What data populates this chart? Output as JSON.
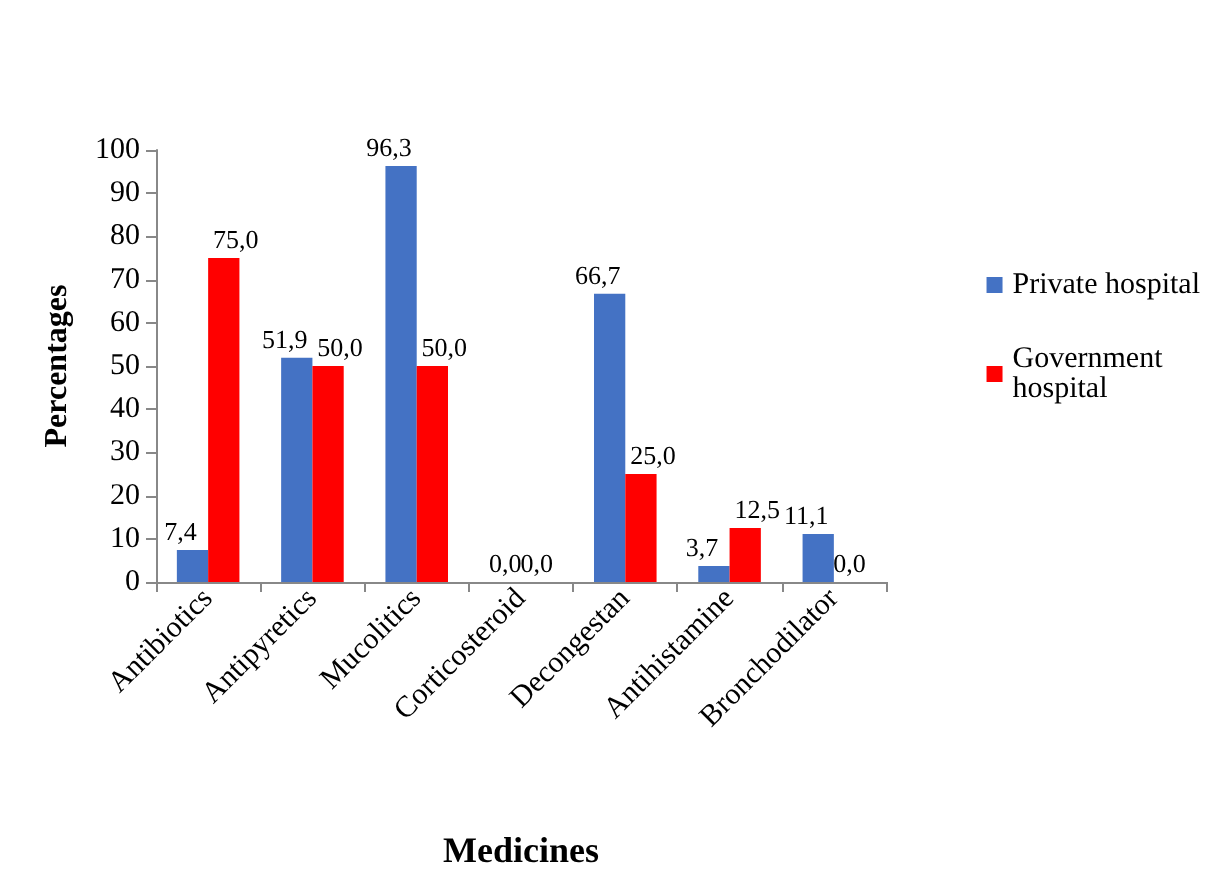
{
  "chart_data": {
    "type": "bar",
    "xlabel": "Medicines",
    "ylabel": "Percentages",
    "categories": [
      "Antibiotics",
      "Antipyretics",
      "Mucolitics",
      "Corticosteroid",
      "Decongestan",
      "Antihistamine",
      "Bronchodilator"
    ],
    "series": [
      {
        "name": "Private hospital",
        "color": "#4472c4",
        "values": [
          7.4,
          51.9,
          96.3,
          0.0,
          66.7,
          3.7,
          11.1
        ],
        "value_labels": [
          "7,4",
          "51,9",
          "96,3",
          "0,0",
          "66,7",
          "3,7",
          "11,1"
        ]
      },
      {
        "name": "Government hospital",
        "color": "#ff0000",
        "values": [
          75.0,
          50.0,
          50.0,
          0.0,
          25.0,
          12.5,
          0.0
        ],
        "value_labels": [
          "75,0",
          "50,0",
          "50,0",
          "0,0",
          "25,0",
          "12,5",
          "0,0"
        ]
      }
    ],
    "ylim": [
      0,
      100
    ],
    "yticks": [
      0,
      10,
      20,
      30,
      40,
      50,
      60,
      70,
      80,
      90,
      100
    ],
    "grid": false,
    "legend": "right"
  }
}
